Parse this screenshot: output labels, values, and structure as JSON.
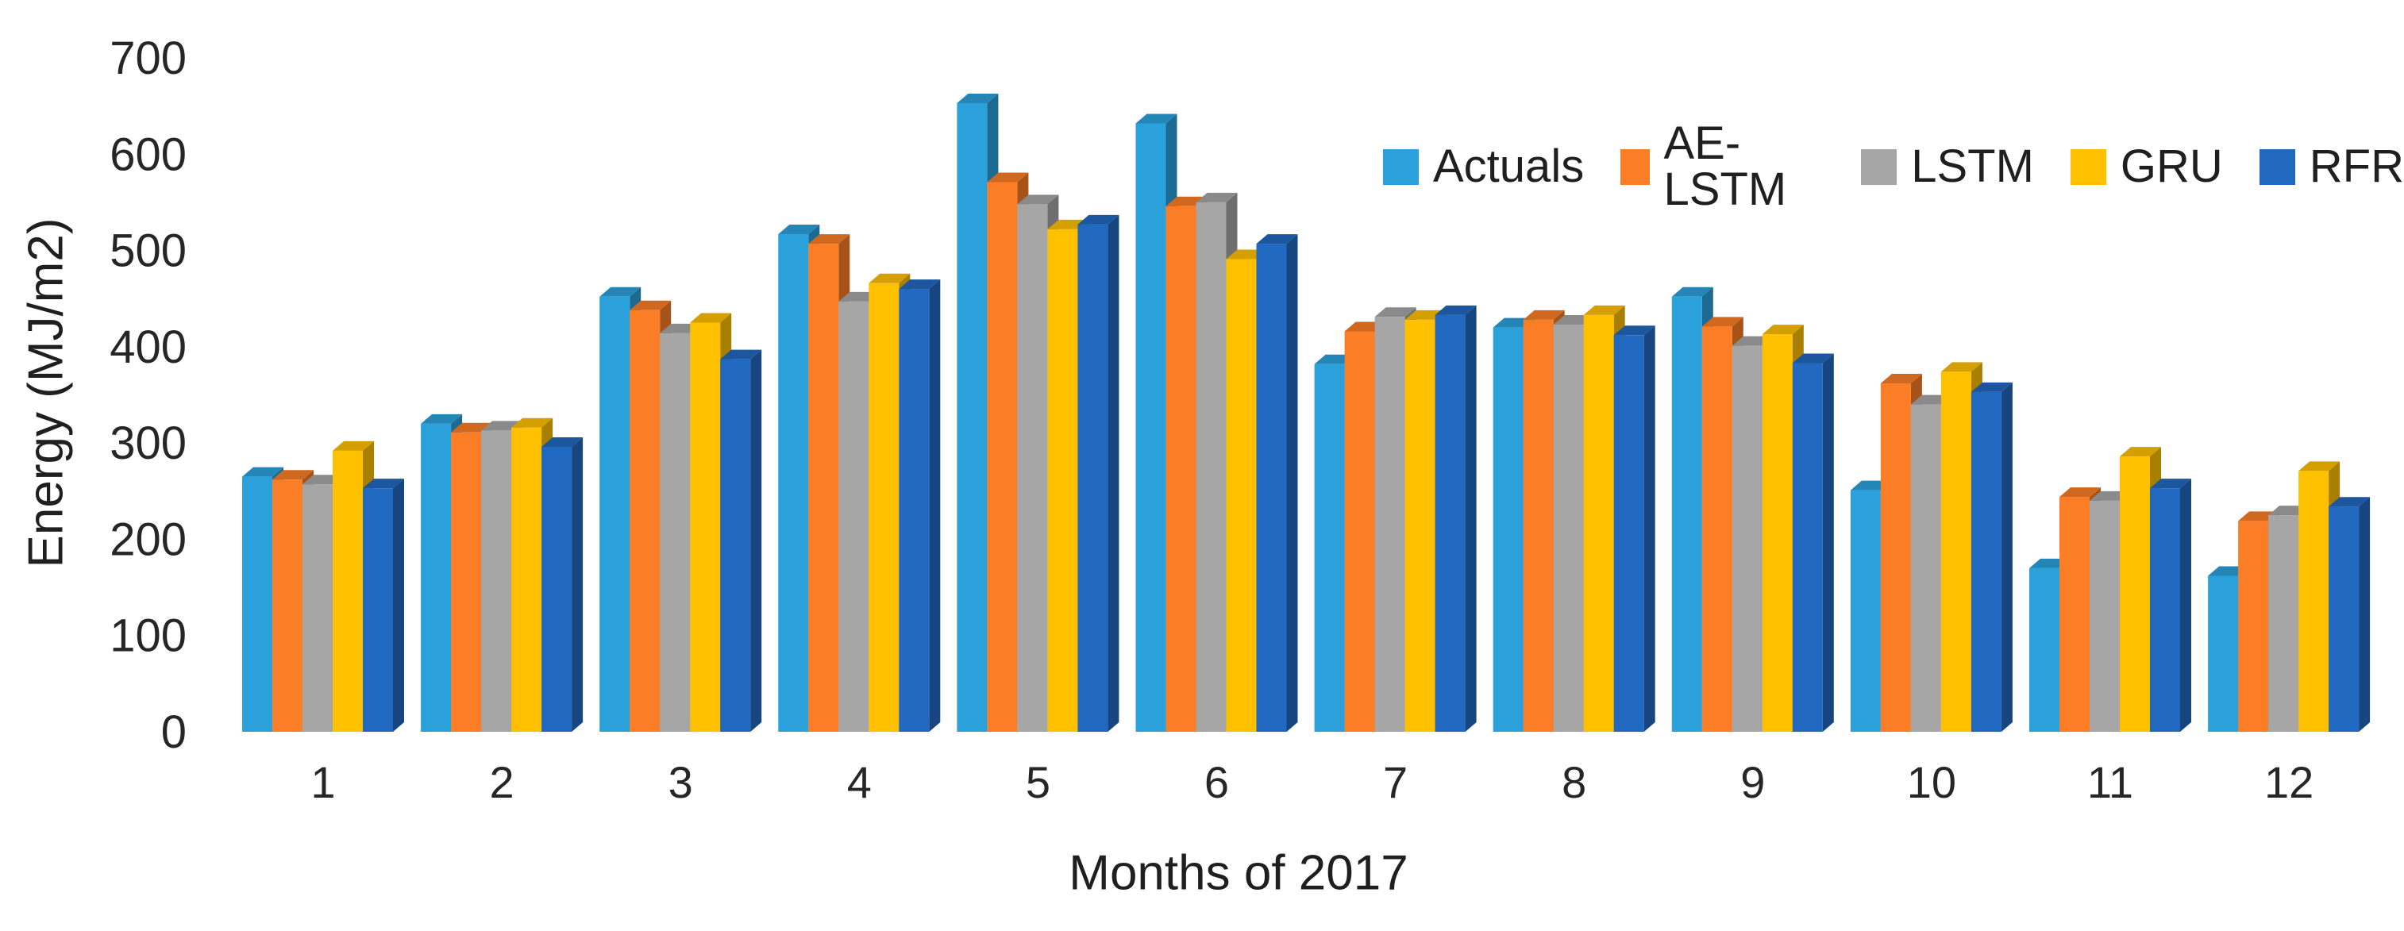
{
  "chart_data": {
    "type": "bar",
    "title": "",
    "xlabel": "Months of 2017",
    "ylabel": "Energy (MJ/m2)",
    "categories": [
      "1",
      "2",
      "3",
      "4",
      "5",
      "6",
      "7",
      "8",
      "9",
      "10",
      "11",
      "12"
    ],
    "ylim": [
      0,
      700
    ],
    "yticks": [
      0,
      100,
      200,
      300,
      400,
      500,
      600,
      700
    ],
    "grid": false,
    "legend_position": "top-right",
    "bar_style": "3d",
    "series": [
      {
        "name": "Actuals",
        "color": "#2BA1DC",
        "values": [
          265,
          320,
          452,
          517,
          653,
          632,
          382,
          420,
          452,
          251,
          170,
          162
        ]
      },
      {
        "name": "AE-LSTM",
        "color": "#FB7D26",
        "values": [
          262,
          311,
          438,
          507,
          571,
          546,
          416,
          428,
          421,
          362,
          244,
          219
        ]
      },
      {
        "name": "LSTM",
        "color": "#A6A6A6",
        "values": [
          257,
          313,
          414,
          447,
          548,
          550,
          431,
          423,
          401,
          340,
          240,
          225
        ]
      },
      {
        "name": "GRU",
        "color": "#FFC000",
        "values": [
          292,
          316,
          425,
          466,
          522,
          491,
          428,
          433,
          413,
          374,
          286,
          271
        ]
      },
      {
        "name": "RFR",
        "color": "#2168C0",
        "values": [
          253,
          296,
          387,
          460,
          527,
          507,
          433,
          412,
          383,
          353,
          253,
          234
        ]
      }
    ]
  }
}
